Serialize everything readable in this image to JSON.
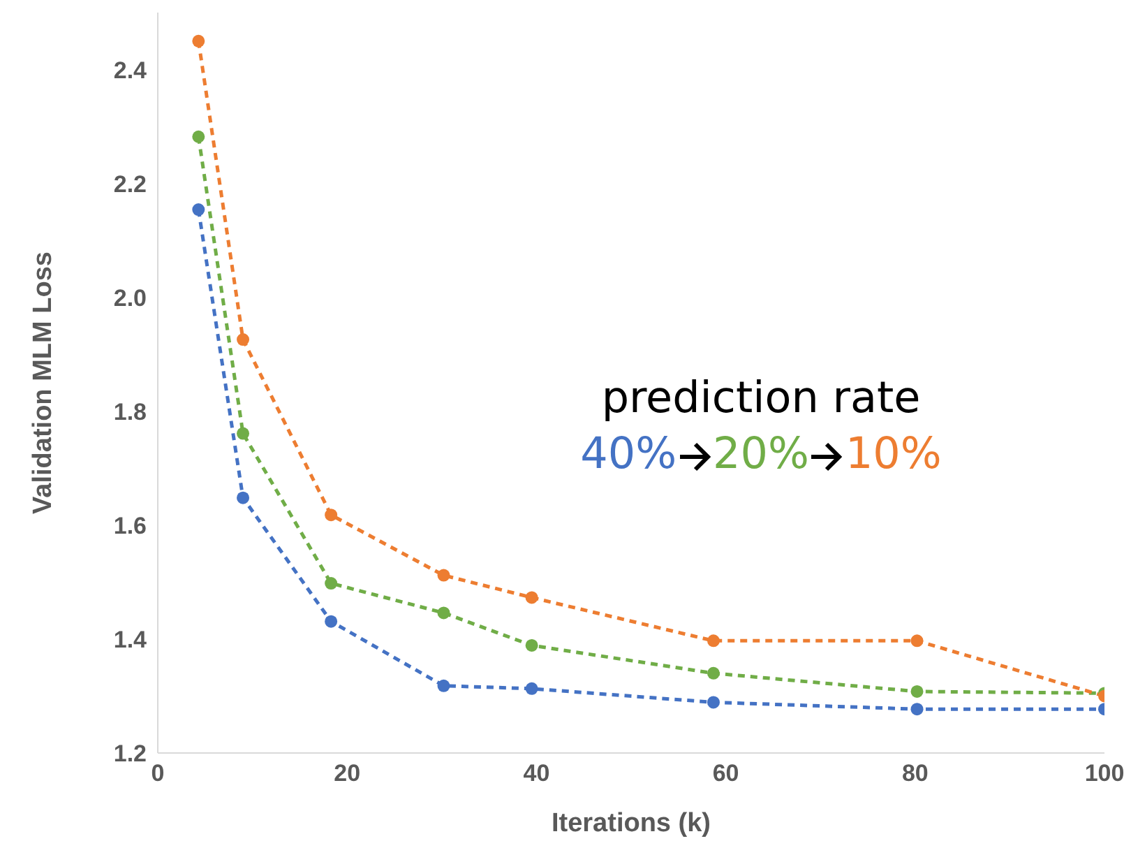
{
  "chart_data": {
    "type": "line",
    "xlabel": "Iterations (k)",
    "ylabel": "Validation MLM Loss",
    "legend_title": "prediction rate",
    "x": [
      4.3,
      9.0,
      18.3,
      30.2,
      39.5,
      58.7,
      80.2,
      100
    ],
    "series": [
      {
        "name": "40%",
        "color": "#4472c4",
        "values": [
          2.154,
          1.648,
          1.431,
          1.318,
          1.313,
          1.289,
          1.277,
          1.277
        ]
      },
      {
        "name": "20%",
        "color": "#70ad47",
        "values": [
          2.282,
          1.761,
          1.498,
          1.446,
          1.389,
          1.34,
          1.308,
          1.305
        ]
      },
      {
        "name": "10%",
        "color": "#ed7d31",
        "values": [
          2.45,
          1.926,
          1.618,
          1.512,
          1.473,
          1.397,
          1.397,
          1.3
        ]
      }
    ],
    "xlim": [
      0,
      100
    ],
    "xticks": [
      0,
      20,
      40,
      60,
      80,
      100
    ],
    "ylim": [
      1.2,
      2.5
    ],
    "yticks": [
      1.2,
      1.4,
      1.6,
      1.8,
      {
        "value": 2,
        "label": "2.0"
      },
      2.2,
      2.4
    ],
    "grid": false,
    "legend": "right",
    "marker": "circle",
    "line_style": "dashed"
  }
}
